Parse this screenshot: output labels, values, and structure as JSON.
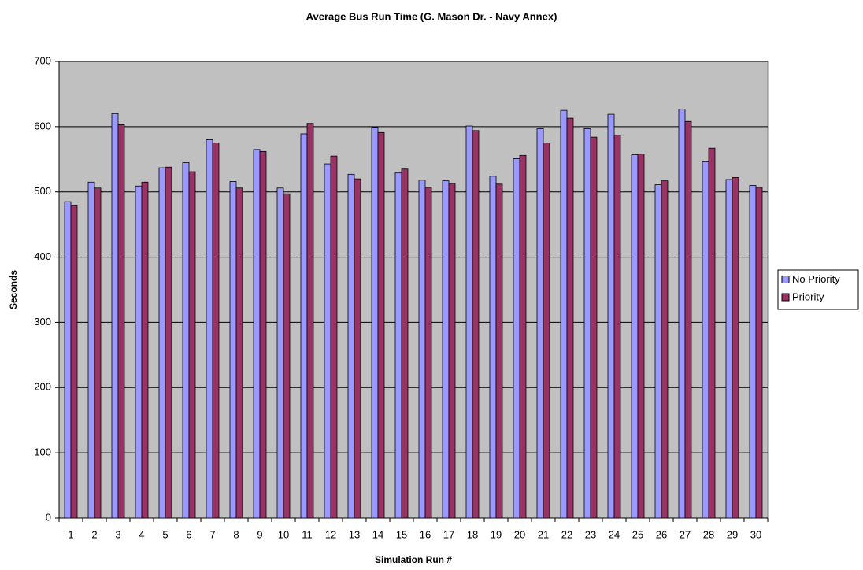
{
  "chart_data": {
    "type": "bar",
    "title": "Average Bus Run Time (G. Mason Dr. - Navy Annex)",
    "x_label": "Simulation Run #",
    "y_label": "Seconds",
    "categories": [
      "1",
      "2",
      "3",
      "4",
      "5",
      "6",
      "7",
      "8",
      "9",
      "10",
      "11",
      "12",
      "13",
      "14",
      "15",
      "16",
      "17",
      "18",
      "19",
      "20",
      "21",
      "22",
      "23",
      "24",
      "25",
      "26",
      "27",
      "28",
      "29",
      "30"
    ],
    "series": [
      {
        "name": "No Priority",
        "color": "#9999ff",
        "values": [
          485,
          515,
          620,
          509,
          537,
          545,
          580,
          516,
          565,
          506,
          589,
          543,
          527,
          599,
          529,
          518,
          517,
          601,
          524,
          551,
          597,
          625,
          597,
          619,
          557,
          511,
          627,
          546,
          519,
          510
        ]
      },
      {
        "name": "Priority",
        "color": "#993366",
        "values": [
          479,
          506,
          603,
          515,
          538,
          531,
          575,
          506,
          562,
          497,
          605,
          555,
          520,
          591,
          535,
          507,
          513,
          594,
          512,
          556,
          575,
          613,
          584,
          587,
          558,
          517,
          608,
          567,
          522,
          507
        ]
      }
    ],
    "ylim": [
      0,
      700
    ],
    "yticks": [
      0,
      100,
      200,
      300,
      400,
      500,
      600,
      700
    ],
    "grid": true,
    "plot_background": "#c0c0c0",
    "legend": "right"
  }
}
